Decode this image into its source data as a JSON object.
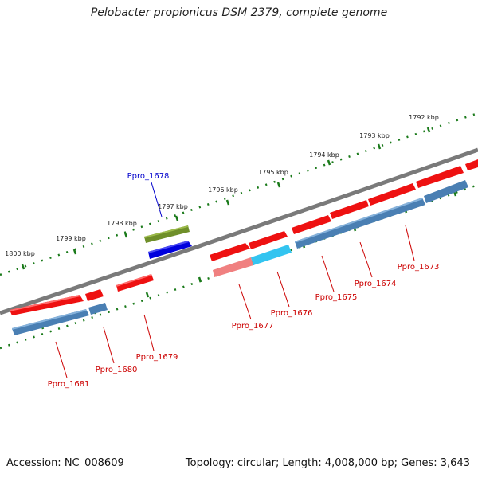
{
  "title": "Pelobacter propionicus DSM 2379, complete genome",
  "footer": {
    "accession": "Accession: NC_008609",
    "summary": "Topology: circular; Length: 4,008,000 bp; Genes: 3,643"
  },
  "colors": {
    "backbone": "#7a7a7a",
    "ruler": "#1a7a1a",
    "gene_forward": "#ee1111",
    "gene_reverse": "#4a7fb3",
    "gene_blue": "#0000dd",
    "gene_olive": "#6f8f2a",
    "gene_cyan": "#33c4f0",
    "gene_pink": "#f08080",
    "label_red": "#cc0000",
    "label_blue": "#0000cc"
  },
  "ruler_labels": [
    "1792 kbp",
    "1793 kbp",
    "1794 kbp",
    "1795 kbp",
    "1796 kbp",
    "1797 kbp",
    "1798 kbp",
    "1799 kbp",
    "1800 kbp"
  ],
  "gene_labels": {
    "ppro_1673": "Ppro_1673",
    "ppro_1674": "Ppro_1674",
    "ppro_1675": "Ppro_1675",
    "ppro_1676": "Ppro_1676",
    "ppro_1677": "Ppro_1677",
    "ppro_1678": "Ppro_1678",
    "ppro_1679": "Ppro_1679",
    "ppro_1680": "Ppro_1680",
    "ppro_1681": "Ppro_1681"
  }
}
